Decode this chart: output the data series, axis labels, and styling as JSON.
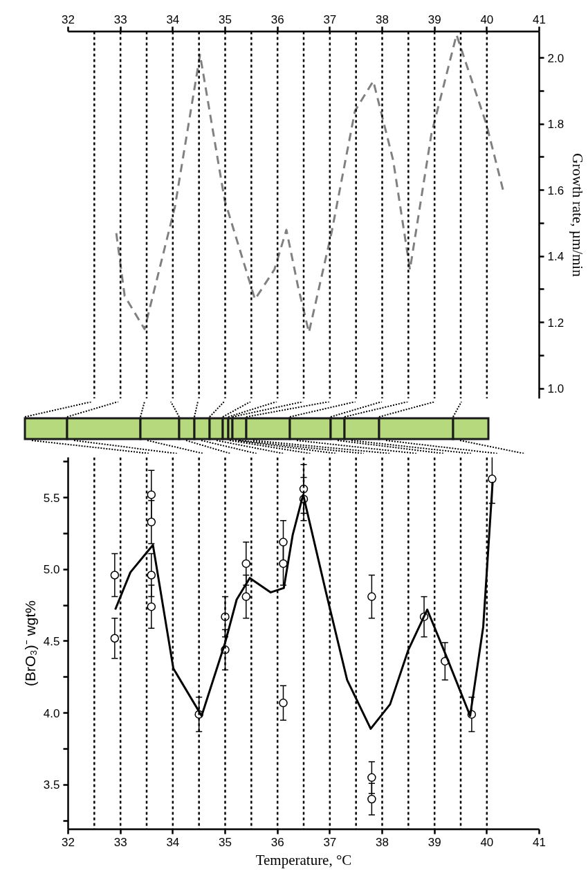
{
  "chart_data": [
    {
      "type": "line",
      "ylabel": "Growth rate, µm/min",
      "xlim": [
        32,
        41
      ],
      "xticks": [
        32,
        33,
        34,
        35,
        36,
        37,
        38,
        39,
        40,
        41
      ],
      "ylim": [
        0.97,
        2.08
      ],
      "yticks": [
        {
          "value": 1.0,
          "label": "1.0"
        },
        {
          "value": 1.1,
          "label": null
        },
        {
          "value": 1.2,
          "label": "1.2"
        },
        {
          "value": 1.3,
          "label": null
        },
        {
          "value": 1.4,
          "label": "1.4"
        },
        {
          "value": 1.5,
          "label": null
        },
        {
          "value": 1.6,
          "label": "1.6"
        },
        {
          "value": 1.7,
          "label": null
        },
        {
          "value": 1.8,
          "label": "1.8"
        },
        {
          "value": 1.9,
          "label": null
        },
        {
          "value": 2.0,
          "label": "2.0"
        }
      ],
      "series": [
        {
          "color": "#808080",
          "line_style": "dashed",
          "x": [
            32.92,
            33.08,
            33.46,
            34.04,
            34.52,
            34.99,
            35.57,
            35.94,
            36.17,
            36.39,
            36.6,
            37.03,
            37.48,
            37.83,
            38.21,
            38.53,
            38.94,
            39.42,
            39.99,
            40.31
          ],
          "values": [
            1.47,
            1.28,
            1.18,
            1.55,
            2.01,
            1.57,
            1.27,
            1.36,
            1.48,
            1.31,
            1.17,
            1.47,
            1.84,
            1.93,
            1.69,
            1.36,
            1.77,
            2.07,
            1.8,
            1.6
          ]
        }
      ],
      "ref_lines": [
        {
          "axis": "x",
          "value": 32.5,
          "line_style": "dotted",
          "color": "#000000"
        },
        {
          "axis": "x",
          "value": 33,
          "line_style": "dotted",
          "color": "#000000"
        },
        {
          "axis": "x",
          "value": 33.5,
          "line_style": "dotted",
          "color": "#000000"
        },
        {
          "axis": "x",
          "value": 34,
          "line_style": "dotted",
          "color": "#000000"
        },
        {
          "axis": "x",
          "value": 34.5,
          "line_style": "dotted",
          "color": "#000000"
        },
        {
          "axis": "x",
          "value": 35,
          "line_style": "dotted",
          "color": "#000000"
        },
        {
          "axis": "x",
          "value": 35.5,
          "line_style": "dotted",
          "color": "#000000"
        },
        {
          "axis": "x",
          "value": 36,
          "line_style": "dotted",
          "color": "#000000"
        },
        {
          "axis": "x",
          "value": 36.5,
          "line_style": "dotted",
          "color": "#000000"
        },
        {
          "axis": "x",
          "value": 37,
          "line_style": "dotted",
          "color": "#000000"
        },
        {
          "axis": "x",
          "value": 37.5,
          "line_style": "dotted",
          "color": "#000000"
        },
        {
          "axis": "x",
          "value": 38,
          "line_style": "dotted",
          "color": "#000000"
        },
        {
          "axis": "x",
          "value": 38.5,
          "line_style": "dotted",
          "color": "#000000"
        },
        {
          "axis": "x",
          "value": 39,
          "line_style": "dotted",
          "color": "#000000"
        },
        {
          "axis": "x",
          "value": 39.5,
          "line_style": "dotted",
          "color": "#000000"
        },
        {
          "axis": "x",
          "value": 40,
          "line_style": "dotted",
          "color": "#000000"
        }
      ]
    },
    {
      "type": "scatter",
      "xlabel": "Temperature, °C",
      "ylabel": "(BrO₃)⁻ wgt%",
      "xlim": [
        32,
        41
      ],
      "xticks": [
        32,
        33,
        34,
        35,
        36,
        37,
        38,
        39,
        40,
        41
      ],
      "ylim": [
        3.19,
        5.78
      ],
      "yticks": [
        {
          "value": 3.25,
          "label": null
        },
        3.5,
        {
          "value": 3.75,
          "label": null
        },
        {
          "value": 4.0,
          "label": "4.0"
        },
        {
          "value": 4.25,
          "label": null
        },
        4.5,
        {
          "value": 4.75,
          "label": null
        },
        {
          "value": 5.0,
          "label": "5.0"
        },
        {
          "value": 5.25,
          "label": null
        },
        5.5,
        {
          "value": 5.75,
          "label": null
        }
      ],
      "series": [
        {
          "type": "scatter",
          "color": "#000000",
          "marker": "circle",
          "x": [
            32.89,
            32.89,
            33.59,
            33.59,
            33.59,
            33.59,
            34.5,
            35.0,
            35.0,
            35.4,
            35.4,
            36.11,
            36.11,
            36.11,
            36.5,
            36.5,
            37.8,
            37.8,
            37.8,
            38.8,
            39.2,
            39.71,
            40.1
          ],
          "values": [
            4.96,
            4.52,
            5.52,
            5.33,
            4.96,
            4.74,
            3.99,
            4.67,
            4.44,
            5.04,
            4.81,
            5.19,
            5.04,
            4.07,
            5.56,
            5.49,
            4.81,
            3.55,
            3.4,
            4.67,
            4.36,
            3.99,
            5.63
          ],
          "errors": [
            0.15,
            0.14,
            0.17,
            0.15,
            0.15,
            0.15,
            0.12,
            0.14,
            0.14,
            0.15,
            0.15,
            0.15,
            0.15,
            0.12,
            0.17,
            0.15,
            0.15,
            0.11,
            0.11,
            0.14,
            0.13,
            0.12,
            0.17
          ]
        },
        {
          "type": "line",
          "color": "#000000",
          "line_style": "solid",
          "x": [
            32.9,
            33.19,
            33.62,
            34.01,
            34.55,
            35.0,
            35.22,
            35.47,
            35.87,
            36.12,
            36.29,
            36.49,
            36.94,
            37.33,
            37.78,
            38.15,
            38.5,
            38.86,
            39.22,
            39.68,
            39.93,
            40.11
          ],
          "values": [
            4.72,
            4.98,
            5.17,
            4.31,
            3.98,
            4.49,
            4.79,
            4.94,
            4.84,
            4.87,
            5.24,
            5.52,
            4.82,
            4.23,
            3.89,
            4.06,
            4.44,
            4.72,
            4.4,
            3.98,
            4.6,
            5.61
          ]
        }
      ],
      "ref_lines": [
        {
          "axis": "x",
          "value": 32.5,
          "line_style": "dotted",
          "color": "#000000"
        },
        {
          "axis": "x",
          "value": 33,
          "line_style": "dotted",
          "color": "#000000"
        },
        {
          "axis": "x",
          "value": 33.5,
          "line_style": "dotted",
          "color": "#000000"
        },
        {
          "axis": "x",
          "value": 34,
          "line_style": "dotted",
          "color": "#000000"
        },
        {
          "axis": "x",
          "value": 34.5,
          "line_style": "dotted",
          "color": "#000000"
        },
        {
          "axis": "x",
          "value": 35,
          "line_style": "dotted",
          "color": "#000000"
        },
        {
          "axis": "x",
          "value": 35.5,
          "line_style": "dotted",
          "color": "#000000"
        },
        {
          "axis": "x",
          "value": 36,
          "line_style": "dotted",
          "color": "#000000"
        },
        {
          "axis": "x",
          "value": 36.5,
          "line_style": "dotted",
          "color": "#000000"
        },
        {
          "axis": "x",
          "value": 37,
          "line_style": "dotted",
          "color": "#000000"
        },
        {
          "axis": "x",
          "value": 37.5,
          "line_style": "dotted",
          "color": "#000000"
        },
        {
          "axis": "x",
          "value": 38,
          "line_style": "dotted",
          "color": "#000000"
        },
        {
          "axis": "x",
          "value": 38.5,
          "line_style": "dotted",
          "color": "#000000"
        },
        {
          "axis": "x",
          "value": 39,
          "line_style": "dotted",
          "color": "#000000"
        },
        {
          "axis": "x",
          "value": 39.5,
          "line_style": "dotted",
          "color": "#000000"
        },
        {
          "axis": "x",
          "value": 40,
          "line_style": "dotted",
          "color": "#000000"
        }
      ]
    }
  ]
}
